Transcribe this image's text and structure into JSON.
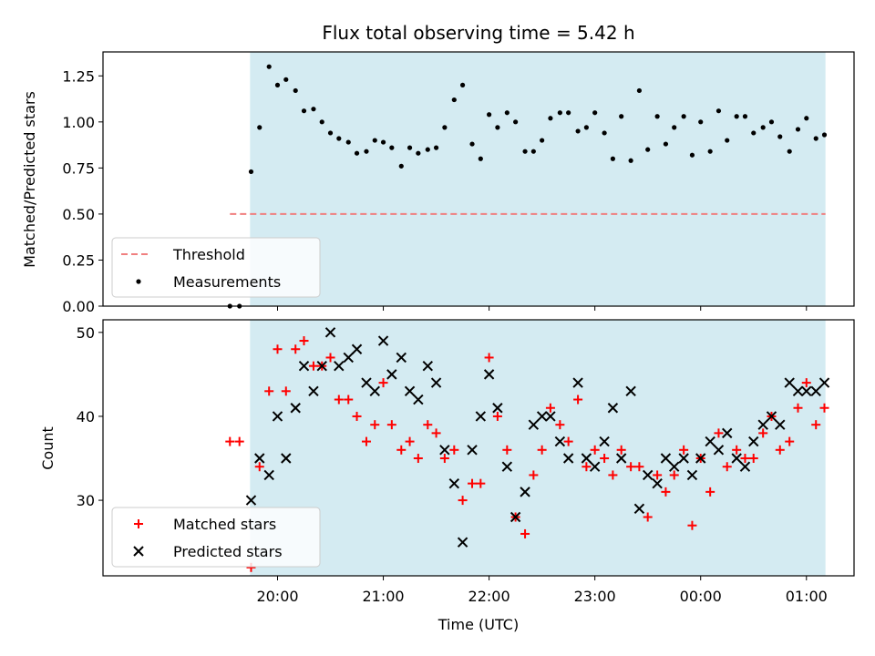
{
  "chart_data": {
    "title": "Flux total observing time = 5.42 h",
    "xlabel": "Time (UTC)",
    "x_unit": "hours since 19:00 UTC",
    "x_ticks": [
      {
        "x": 1,
        "label": "20:00"
      },
      {
        "x": 2,
        "label": "21:00"
      },
      {
        "x": 3,
        "label": "22:00"
      },
      {
        "x": 4,
        "label": "23:00"
      },
      {
        "x": 5,
        "label": "00:00"
      },
      {
        "x": 6,
        "label": "01:00"
      }
    ],
    "xlim": [
      -0.65,
      6.45
    ],
    "shaded_span": {
      "x_start": 0.74,
      "x_end": 6.18,
      "color": "#add8e6"
    },
    "panels": [
      {
        "type": "scatter",
        "ylabel": "Matched/Predicted stars",
        "ylim": [
          0,
          1.38
        ],
        "y_ticks": [
          {
            "y": 0,
            "label": "0.00"
          },
          {
            "y": 0.25,
            "label": "0.25"
          },
          {
            "y": 0.5,
            "label": "0.50"
          },
          {
            "y": 0.75,
            "label": "0.75"
          },
          {
            "y": 1.0,
            "label": "1.00"
          },
          {
            "y": 1.25,
            "label": "1.25"
          }
        ],
        "threshold": {
          "name": "Threshold",
          "value": 0.5,
          "x_start": 0.55,
          "x_end": 6.18,
          "color": "#f07f7f"
        },
        "series": [
          {
            "name": "Measurements",
            "color": "#000000",
            "marker": "dot",
            "x": [
              0.55,
              0.64,
              0.75,
              0.83,
              0.92,
              1.0,
              1.08,
              1.17,
              1.25,
              1.34,
              1.42,
              1.5,
              1.58,
              1.67,
              1.75,
              1.84,
              1.92,
              2.0,
              2.08,
              2.17,
              2.25,
              2.33,
              2.42,
              2.5,
              2.58,
              2.67,
              2.75,
              2.84,
              2.92,
              3.0,
              3.08,
              3.17,
              3.25,
              3.34,
              3.42,
              3.5,
              3.58,
              3.67,
              3.75,
              3.84,
              3.92,
              4.0,
              4.09,
              4.17,
              4.25,
              4.34,
              4.42,
              4.5,
              4.59,
              4.67,
              4.75,
              4.84,
              4.92,
              5.0,
              5.09,
              5.17,
              5.25,
              5.34,
              5.42,
              5.5,
              5.59,
              5.67,
              5.75,
              5.84,
              5.92,
              6.0,
              6.09,
              6.17
            ],
            "y": [
              0.0,
              0.0,
              0.73,
              0.97,
              1.3,
              1.2,
              1.23,
              1.17,
              1.06,
              1.07,
              1.0,
              0.94,
              0.91,
              0.89,
              0.83,
              0.84,
              0.9,
              0.89,
              0.86,
              0.76,
              0.86,
              0.83,
              0.85,
              0.86,
              0.97,
              1.12,
              1.2,
              0.88,
              0.8,
              1.04,
              0.97,
              1.05,
              1.0,
              0.84,
              0.84,
              0.9,
              1.02,
              1.05,
              1.05,
              0.95,
              0.97,
              1.05,
              0.94,
              0.8,
              1.03,
              0.79,
              1.17,
              0.85,
              1.03,
              0.88,
              0.97,
              1.03,
              0.82,
              1.0,
              0.84,
              1.06,
              0.9,
              1.03,
              1.03,
              0.94,
              0.97,
              1.0,
              0.92,
              0.84,
              0.96,
              1.02,
              0.91,
              0.93
            ]
          }
        ],
        "legend": {
          "placement": "lower-left",
          "entries": [
            "Threshold",
            "Measurements"
          ]
        }
      },
      {
        "type": "scatter",
        "ylabel": "Count",
        "ylim": [
          21,
          51.5
        ],
        "y_ticks": [
          {
            "y": 30,
            "label": "30"
          },
          {
            "y": 40,
            "label": "40"
          },
          {
            "y": 50,
            "label": "50"
          }
        ],
        "series": [
          {
            "name": "Matched stars",
            "color": "#ff0000",
            "marker": "plus",
            "x": [
              0.55,
              0.64,
              0.75,
              0.83,
              0.92,
              1.0,
              1.08,
              1.17,
              1.25,
              1.34,
              1.42,
              1.5,
              1.58,
              1.67,
              1.75,
              1.84,
              1.92,
              2.0,
              2.08,
              2.17,
              2.25,
              2.33,
              2.42,
              2.5,
              2.58,
              2.67,
              2.75,
              2.84,
              2.92,
              3.0,
              3.08,
              3.17,
              3.25,
              3.34,
              3.42,
              3.5,
              3.58,
              3.67,
              3.75,
              3.84,
              3.92,
              4.0,
              4.09,
              4.17,
              4.25,
              4.34,
              4.42,
              4.5,
              4.59,
              4.67,
              4.75,
              4.84,
              4.92,
              5.0,
              5.09,
              5.17,
              5.25,
              5.34,
              5.42,
              5.5,
              5.59,
              5.67,
              5.75,
              5.84,
              5.92,
              6.0,
              6.09,
              6.17
            ],
            "y": [
              37,
              37,
              22,
              34,
              43,
              48,
              43,
              48,
              49,
              46,
              46,
              47,
              42,
              42,
              40,
              37,
              39,
              44,
              39,
              36,
              37,
              35,
              39,
              38,
              35,
              36,
              30,
              32,
              32,
              47,
              40,
              36,
              28,
              26,
              33,
              36,
              41,
              39,
              37,
              42,
              34,
              36,
              35,
              33,
              36,
              34,
              34,
              28,
              33,
              31,
              33,
              36,
              27,
              35,
              31,
              38,
              34,
              36,
              35,
              35,
              38,
              40,
              36,
              37,
              41,
              44,
              39,
              41
            ]
          },
          {
            "name": "Predicted stars",
            "color": "#000000",
            "marker": "x",
            "x": [
              0.75,
              0.83,
              0.92,
              1.0,
              1.08,
              1.17,
              1.25,
              1.34,
              1.42,
              1.5,
              1.58,
              1.67,
              1.75,
              1.84,
              1.92,
              2.0,
              2.08,
              2.17,
              2.25,
              2.33,
              2.42,
              2.5,
              2.58,
              2.67,
              2.75,
              2.84,
              2.92,
              3.0,
              3.08,
              3.17,
              3.25,
              3.34,
              3.42,
              3.5,
              3.58,
              3.67,
              3.75,
              3.84,
              3.92,
              4.0,
              4.09,
              4.17,
              4.25,
              4.34,
              4.42,
              4.5,
              4.59,
              4.67,
              4.75,
              4.84,
              4.92,
              5.0,
              5.09,
              5.17,
              5.25,
              5.34,
              5.42,
              5.5,
              5.59,
              5.67,
              5.75,
              5.84,
              5.92,
              6.0,
              6.09,
              6.17
            ],
            "y": [
              30,
              35,
              33,
              40,
              35,
              41,
              46,
              43,
              46,
              50,
              46,
              47,
              48,
              44,
              43,
              49,
              45,
              47,
              43,
              42,
              46,
              44,
              36,
              32,
              25,
              36,
              40,
              45,
              41,
              34,
              28,
              31,
              39,
              40,
              40,
              37,
              35,
              44,
              35,
              34,
              37,
              41,
              35,
              43,
              29,
              33,
              32,
              35,
              34,
              35,
              33,
              35,
              37,
              36,
              38,
              35,
              34,
              37,
              39,
              40,
              39,
              44,
              43,
              43,
              43,
              44
            ]
          }
        ],
        "legend": {
          "placement": "lower-left",
          "entries": [
            "Matched stars",
            "Predicted stars"
          ]
        }
      }
    ]
  }
}
